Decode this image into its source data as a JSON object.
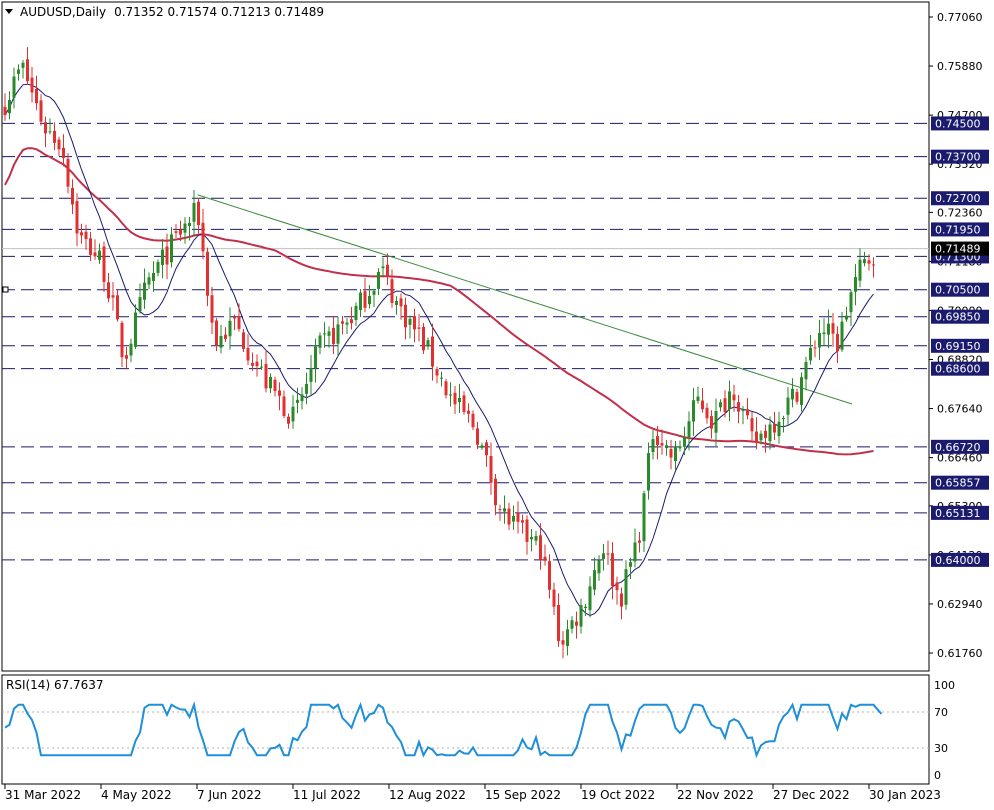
{
  "header": {
    "symbol_label": "AUDUSD,Daily",
    "ohlc": "0.71352 0.71574 0.71213 0.71489"
  },
  "chart_data": {
    "type": "candlestick",
    "y_axis_ticks": [
      0.7706,
      0.7588,
      0.747,
      0.7352,
      0.7236,
      0.7118,
      0.7,
      0.6882,
      0.6764,
      0.6646,
      0.653,
      0.6412,
      0.6294,
      0.6176
    ],
    "y_axis_tick_labels": [
      "0.77060",
      "0.75880",
      "0.74700",
      "0.73520",
      "0.72360",
      "0.71180",
      "0.70000",
      "0.68820",
      "0.67640",
      "0.66460",
      "0.65300",
      "0.64120",
      "0.62940",
      "0.61760"
    ],
    "x_axis_labels": [
      "31 Mar 2022",
      "4 May 2022",
      "7 Jun 2022",
      "11 Jul 2022",
      "12 Aug 2022",
      "15 Sep 2022",
      "19 Oct 2022",
      "22 Nov 2022",
      "27 Dec 2022",
      "30 Jan 2023"
    ],
    "current_price": 0.71489,
    "current_price_label": "0.71489",
    "horizontal_levels": [
      {
        "value": 0.745,
        "label": "0.74500"
      },
      {
        "value": 0.737,
        "label": "0.73700"
      },
      {
        "value": 0.727,
        "label": "0.72700"
      },
      {
        "value": 0.7195,
        "label": "0.71950"
      },
      {
        "value": 0.713,
        "label": "0.71300"
      },
      {
        "value": 0.705,
        "label": "0.70500"
      },
      {
        "value": 0.6985,
        "label": "0.69850"
      },
      {
        "value": 0.6915,
        "label": "0.69150"
      },
      {
        "value": 0.686,
        "label": "0.68600"
      },
      {
        "value": 0.6672,
        "label": "0.66720"
      },
      {
        "value": 0.65857,
        "label": "0.65857"
      },
      {
        "value": 0.65131,
        "label": "0.65131"
      },
      {
        "value": 0.64,
        "label": "0.64000"
      }
    ],
    "trendline": {
      "start": {
        "date": "2022-06-07",
        "value": 0.7278
      },
      "end": {
        "date": "2023-01-24",
        "value": 0.6775
      }
    },
    "price_path": [
      {
        "date": "2022-03-31",
        "value": 0.75
      },
      {
        "date": "2022-04-06",
        "value": 0.759
      },
      {
        "date": "2022-04-14",
        "value": 0.744
      },
      {
        "date": "2022-04-20",
        "value": 0.74
      },
      {
        "date": "2022-04-26",
        "value": 0.718
      },
      {
        "date": "2022-05-04",
        "value": 0.712
      },
      {
        "date": "2022-05-08",
        "value": 0.701
      },
      {
        "date": "2022-05-12",
        "value": 0.688
      },
      {
        "date": "2022-05-20",
        "value": 0.706
      },
      {
        "date": "2022-05-31",
        "value": 0.718
      },
      {
        "date": "2022-06-07",
        "value": 0.724
      },
      {
        "date": "2022-06-13",
        "value": 0.692
      },
      {
        "date": "2022-06-20",
        "value": 0.697
      },
      {
        "date": "2022-07-01",
        "value": 0.683
      },
      {
        "date": "2022-07-11",
        "value": 0.674
      },
      {
        "date": "2022-07-20",
        "value": 0.691
      },
      {
        "date": "2022-08-01",
        "value": 0.699
      },
      {
        "date": "2022-08-11",
        "value": 0.71
      },
      {
        "date": "2022-08-16",
        "value": 0.702
      },
      {
        "date": "2022-08-26",
        "value": 0.692
      },
      {
        "date": "2022-09-05",
        "value": 0.678
      },
      {
        "date": "2022-09-13",
        "value": 0.672
      },
      {
        "date": "2022-09-22",
        "value": 0.652
      },
      {
        "date": "2022-09-28",
        "value": 0.647
      },
      {
        "date": "2022-10-06",
        "value": 0.643
      },
      {
        "date": "2022-10-13",
        "value": 0.62
      },
      {
        "date": "2022-10-21",
        "value": 0.629
      },
      {
        "date": "2022-10-28",
        "value": 0.644
      },
      {
        "date": "2022-11-03",
        "value": 0.63
      },
      {
        "date": "2022-11-10",
        "value": 0.647
      },
      {
        "date": "2022-11-15",
        "value": 0.672
      },
      {
        "date": "2022-11-22",
        "value": 0.664
      },
      {
        "date": "2022-12-01",
        "value": 0.679
      },
      {
        "date": "2022-12-06",
        "value": 0.673
      },
      {
        "date": "2022-12-13",
        "value": 0.682
      },
      {
        "date": "2022-12-20",
        "value": 0.668
      },
      {
        "date": "2022-12-27",
        "value": 0.673
      },
      {
        "date": "2023-01-04",
        "value": 0.68
      },
      {
        "date": "2023-01-13",
        "value": 0.696
      },
      {
        "date": "2023-01-19",
        "value": 0.692
      },
      {
        "date": "2023-01-24",
        "value": 0.705
      },
      {
        "date": "2023-01-27",
        "value": 0.71
      },
      {
        "date": "2023-02-02",
        "value": 0.7149
      }
    ],
    "rsi": {
      "label": "RSI(14) 67.7637",
      "value": 67.7637,
      "levels": [
        70,
        30
      ],
      "ticks": [
        100,
        70,
        30,
        0
      ],
      "tick_labels": [
        "100",
        "70",
        "30",
        "0"
      ]
    }
  },
  "colors": {
    "bull": "#2a8a2a",
    "bear": "#e03030",
    "level_line": "#1a1a6e",
    "ma_fast": "#1a1a6e",
    "ma_slow": "#c0304a",
    "trendline": "#3c8c3c",
    "rsi": "#1e8fd8",
    "label_bg": "#1a1a6e",
    "price_bg": "#000000"
  }
}
